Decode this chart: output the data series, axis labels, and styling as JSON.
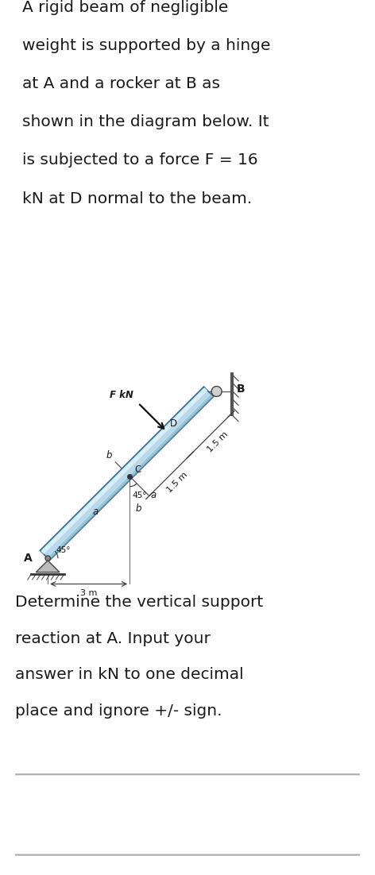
{
  "bg_color": "#ffffff",
  "text_color": "#1a1a1a",
  "paragraph1_lines": [
    "A rigid beam of negligible",
    "weight is supported by a hinge",
    "at A and a rocker at B as",
    "shown in the diagram below. It",
    "is subjected to a force F = 16",
    "kN at D normal to the beam."
  ],
  "paragraph2_lines": [
    "Determine the vertical support",
    "reaction at A. Input your",
    "answer in kN to one decimal",
    "place and ignore +/- sign."
  ],
  "beam_color": "#b8daea",
  "beam_highlight": "#ddf2fc",
  "beam_dark": "#7ab0c8",
  "beam_edge_color": "#3a6a8a",
  "label_F": "F kN",
  "label_D": "D",
  "label_B": "B",
  "label_A": "A",
  "label_C": "C",
  "label_a": "a",
  "label_b": "b",
  "label_45": "45°",
  "label_3m": "3 m",
  "label_15m": "1.5 m",
  "answer_box_edge": "#aaaaaa"
}
